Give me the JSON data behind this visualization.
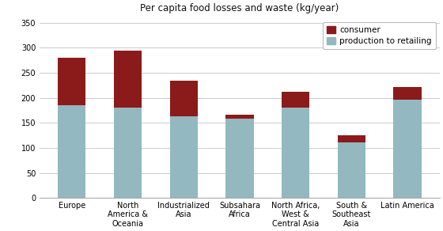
{
  "title": "Per capita food losses and waste (kg/year)",
  "categories": [
    "Europe",
    "North\nAmerica &\nOceania",
    "Industrialized\nAsia",
    "Subsahara\nAfrica",
    "North Africa,\nWest &\nCentral Asia",
    "South &\nSoutheast\nAsia",
    "Latin America"
  ],
  "production_to_retailing": [
    185,
    180,
    163,
    158,
    180,
    112,
    197
  ],
  "consumer": [
    95,
    115,
    72,
    8,
    33,
    13,
    25
  ],
  "color_production": "#93b8c0",
  "color_consumer": "#8b1a1a",
  "ylim": [
    0,
    360
  ],
  "yticks": [
    0,
    50,
    100,
    150,
    200,
    250,
    300,
    350
  ],
  "legend_labels": [
    "consumer",
    "production to retailing"
  ],
  "background_color": "#ffffff",
  "grid_color": "#cccccc",
  "title_fontsize": 8.5,
  "tick_fontsize": 7,
  "legend_fontsize": 7.5,
  "bar_width": 0.5
}
